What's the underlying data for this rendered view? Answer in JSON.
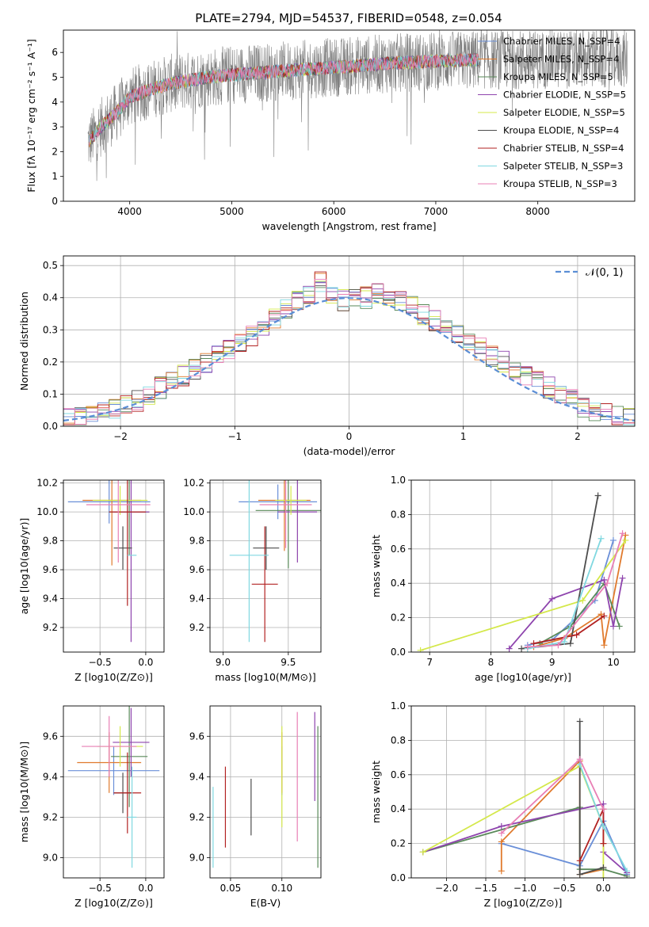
{
  "title": "PLATE=2794, MJD=54537, FIBERID=0548, z=0.054",
  "colors": [
    "#6a8fd8",
    "#e07a2d",
    "#5a8a5a",
    "#8e44ad",
    "#d4e84a",
    "#4d4d4d",
    "#b22222",
    "#80d8e0",
    "#e87fb5",
    "#777777"
  ],
  "chart_data": [
    {
      "id": "spectrum",
      "type": "line",
      "xlabel": "wavelength [Angstrom, rest frame]",
      "ylabel": "Flux [fλ 10⁻¹⁷ erg cm⁻² s⁻¹ A⁻¹]",
      "xlim": [
        3350,
        8950
      ],
      "ylim": [
        0,
        6.9
      ],
      "xticks": [
        4000,
        5000,
        6000,
        7000,
        8000
      ],
      "yticks": [
        0,
        1,
        2,
        3,
        4,
        5,
        6
      ],
      "legend_position": "top-right",
      "legend": [
        "Chabrier MILES, N_SSP=4",
        "Salpeter MILES, N_SSP=4",
        "Kroupa MILES, N_SSP=5",
        "Chabrier ELODIE, N_SSP=5",
        "Salpeter ELODIE, N_SSP=5",
        "Kroupa ELODIE, N_SSP=4",
        "Chabrier STELIB, N_SSP=4",
        "Salpeter STELIB, N_SSP=3",
        "Kroupa STELIB, N_SSP=3"
      ],
      "model_trend": {
        "x": [
          3600,
          3700,
          3800,
          3900,
          4000,
          4200,
          4400,
          4700,
          5000,
          5500,
          6000,
          6500,
          7000,
          7400
        ],
        "y": [
          2.4,
          2.9,
          3.3,
          3.7,
          4.2,
          4.5,
          4.75,
          4.95,
          5.1,
          5.25,
          5.4,
          5.55,
          5.65,
          5.7
        ]
      }
    },
    {
      "id": "residuals",
      "type": "histogram",
      "xlabel": "(data-model)/error",
      "ylabel": "Normed distribution",
      "xlim": [
        -2.5,
        2.5
      ],
      "ylim": [
        0,
        0.53
      ],
      "xticks": [
        -2,
        -1,
        0,
        1,
        2
      ],
      "yticks": [
        0.0,
        0.1,
        0.2,
        0.3,
        0.4,
        0.5
      ],
      "bins": {
        "start": -2.5,
        "width": 0.1,
        "count": 50
      },
      "reference_label": "𝒩(0, 1)",
      "reference_curve": "normal",
      "base_density": [
        0.02,
        0.03,
        0.04,
        0.05,
        0.06,
        0.07,
        0.08,
        0.1,
        0.12,
        0.14,
        0.16,
        0.18,
        0.2,
        0.22,
        0.24,
        0.26,
        0.28,
        0.31,
        0.34,
        0.37,
        0.39,
        0.41,
        0.45,
        0.4,
        0.39,
        0.4,
        0.4,
        0.41,
        0.4,
        0.39,
        0.37,
        0.35,
        0.33,
        0.3,
        0.28,
        0.26,
        0.24,
        0.22,
        0.2,
        0.18,
        0.16,
        0.14,
        0.12,
        0.1,
        0.08,
        0.06,
        0.05,
        0.04,
        0.03,
        0.03
      ]
    },
    {
      "id": "age-vs-z",
      "type": "errorbar",
      "xlabel": "Z [log10(Z/Z⊙)]",
      "ylabel": "age  [log10(age/yr)]",
      "xlim": [
        -0.9,
        0.2
      ],
      "ylim": [
        9.03,
        10.22
      ],
      "xticks": [
        -0.5,
        0.0
      ],
      "yticks": [
        9.2,
        9.4,
        9.6,
        9.8,
        10.0,
        10.2
      ],
      "points": [
        {
          "x": -0.4,
          "xerr": 0.45,
          "y": 10.07,
          "yerr": 0.15,
          "color": 0
        },
        {
          "x": -0.37,
          "xerr": 0.32,
          "y": 10.08,
          "yerr": 0.45,
          "color": 1
        },
        {
          "x": -0.18,
          "xerr": 0.22,
          "y": 10.0,
          "yerr": 0.3,
          "color": 2
        },
        {
          "x": -0.16,
          "xerr": 0.2,
          "y": 10.0,
          "yerr": 0.9,
          "color": 3
        },
        {
          "x": -0.28,
          "xerr": 0.3,
          "y": 10.08,
          "yerr": 0.1,
          "color": 4
        },
        {
          "x": -0.25,
          "xerr": 0.1,
          "y": 9.75,
          "yerr": 0.15,
          "color": 5
        },
        {
          "x": -0.2,
          "xerr": 0.2,
          "y": 10.0,
          "yerr": 0.65,
          "color": 6
        },
        {
          "x": -0.15,
          "xerr": 0.05,
          "y": 9.7,
          "yerr": 0.0,
          "color": 7
        },
        {
          "x": -0.3,
          "xerr": 0.35,
          "y": 10.05,
          "yerr": 0.4,
          "color": 8
        }
      ]
    },
    {
      "id": "age-vs-mass",
      "type": "errorbar",
      "xlabel": "mass [log10(M/M⊙)]",
      "ylabel": "",
      "xlim": [
        8.9,
        9.75
      ],
      "ylim": [
        9.03,
        10.22
      ],
      "xticks": [
        9.0,
        9.5
      ],
      "yticks": [
        9.2,
        9.4,
        9.6,
        9.8,
        10.0,
        10.2
      ],
      "points": [
        {
          "x": 9.42,
          "xerr": 0.3,
          "y": 10.07,
          "yerr": 0.12,
          "color": 0
        },
        {
          "x": 9.47,
          "xerr": 0.2,
          "y": 10.08,
          "yerr": 0.35,
          "color": 1
        },
        {
          "x": 9.5,
          "xerr": 0.25,
          "y": 10.01,
          "yerr": 0.4,
          "color": 2
        },
        {
          "x": 9.57,
          "xerr": 0.15,
          "y": 10.0,
          "yerr": 0.35,
          "color": 3
        },
        {
          "x": 9.52,
          "xerr": 0.12,
          "y": 10.08,
          "yerr": 0.1,
          "color": 4
        },
        {
          "x": 9.33,
          "xerr": 0.1,
          "y": 9.75,
          "yerr": 0.15,
          "color": 5
        },
        {
          "x": 9.32,
          "xerr": 0.1,
          "y": 9.5,
          "yerr": 0.4,
          "color": 6
        },
        {
          "x": 9.2,
          "xerr": 0.15,
          "y": 9.7,
          "yerr": 0.6,
          "color": 7
        },
        {
          "x": 9.48,
          "xerr": 0.2,
          "y": 10.05,
          "yerr": 0.3,
          "color": 8
        }
      ]
    },
    {
      "id": "massweight-vs-age",
      "type": "line",
      "xlabel": "age  [log10(age/yr)]",
      "ylabel": "mass weight",
      "xlim": [
        6.7,
        10.35
      ],
      "ylim": [
        0,
        1.0
      ],
      "xticks": [
        7,
        8,
        9,
        10
      ],
      "yticks": [
        0.0,
        0.2,
        0.4,
        0.6,
        0.8,
        1.0
      ],
      "series": [
        {
          "color": 0,
          "x": [
            8.6,
            9.0,
            9.7,
            10.0
          ],
          "y": [
            0.04,
            0.07,
            0.3,
            0.65
          ]
        },
        {
          "color": 1,
          "x": [
            8.7,
            9.2,
            9.8,
            9.85,
            10.2
          ],
          "y": [
            0.03,
            0.08,
            0.22,
            0.04,
            0.68
          ]
        },
        {
          "color": 2,
          "x": [
            8.8,
            9.3,
            9.85,
            10.1
          ],
          "y": [
            0.05,
            0.15,
            0.4,
            0.15
          ]
        },
        {
          "color": 3,
          "x": [
            8.3,
            9.0,
            9.85,
            10.0,
            10.15
          ],
          "y": [
            0.02,
            0.31,
            0.42,
            0.15,
            0.43
          ]
        },
        {
          "color": 4,
          "x": [
            6.85,
            9.5,
            10.2
          ],
          "y": [
            0.01,
            0.3,
            0.65
          ]
        },
        {
          "color": 5,
          "x": [
            8.5,
            9.3,
            9.75
          ],
          "y": [
            0.02,
            0.05,
            0.91
          ]
        },
        {
          "color": 6,
          "x": [
            8.7,
            9.4,
            9.85
          ],
          "y": [
            0.05,
            0.1,
            0.21
          ]
        },
        {
          "color": 7,
          "x": [
            8.6,
            9.2,
            9.8
          ],
          "y": [
            0.02,
            0.06,
            0.66
          ]
        },
        {
          "color": 8,
          "x": [
            8.6,
            9.1,
            9.9,
            10.15
          ],
          "y": [
            0.03,
            0.04,
            0.4,
            0.69
          ]
        }
      ]
    },
    {
      "id": "mass-vs-z",
      "type": "errorbar",
      "xlabel": "Z [log10(Z/Z⊙)]",
      "ylabel": "mass [log10(M/M⊙)]",
      "xlim": [
        -0.9,
        0.2
      ],
      "ylim": [
        8.9,
        9.75
      ],
      "xticks": [
        -0.5,
        0.0
      ],
      "yticks": [
        9.0,
        9.2,
        9.4,
        9.6
      ],
      "points": [
        {
          "x": -0.35,
          "xerr": 0.5,
          "y": 9.43,
          "yerr": 0.12,
          "color": 0
        },
        {
          "x": -0.4,
          "xerr": 0.35,
          "y": 9.47,
          "yerr": 0.15,
          "color": 1
        },
        {
          "x": -0.18,
          "xerr": 0.2,
          "y": 9.5,
          "yerr": 0.25,
          "color": 2
        },
        {
          "x": -0.16,
          "xerr": 0.2,
          "y": 9.57,
          "yerr": 0.17,
          "color": 3
        },
        {
          "x": -0.28,
          "xerr": 0.25,
          "y": 9.55,
          "yerr": 0.1,
          "color": 4
        },
        {
          "x": -0.25,
          "xerr": 0.1,
          "y": 9.32,
          "yerr": 0.1,
          "color": 5
        },
        {
          "x": -0.2,
          "xerr": 0.15,
          "y": 9.32,
          "yerr": 0.2,
          "color": 6
        },
        {
          "x": -0.15,
          "xerr": 0.05,
          "y": 9.2,
          "yerr": 0.25,
          "color": 7
        },
        {
          "x": -0.4,
          "xerr": 0.3,
          "y": 9.55,
          "yerr": 0.15,
          "color": 8
        }
      ]
    },
    {
      "id": "mass-vs-ebv",
      "type": "errorbar",
      "xlabel": "E(B-V)",
      "ylabel": "",
      "xlim": [
        0.03,
        0.138
      ],
      "ylim": [
        8.9,
        9.75
      ],
      "xticks": [
        0.05,
        0.1
      ],
      "yticks": [
        9.0,
        9.2,
        9.4,
        9.6
      ],
      "points": [
        {
          "x": 0.1,
          "xerr": 0,
          "y": 9.43,
          "yerr": 0.12,
          "color": 0
        },
        {
          "x": 0.1,
          "xerr": 0,
          "y": 9.47,
          "yerr": 0.15,
          "color": 1
        },
        {
          "x": 0.135,
          "xerr": 0,
          "y": 9.3,
          "yerr": 0.35,
          "color": 2
        },
        {
          "x": 0.132,
          "xerr": 0,
          "y": 9.5,
          "yerr": 0.22,
          "color": 3
        },
        {
          "x": 0.1,
          "xerr": 0,
          "y": 9.4,
          "yerr": 0.25,
          "color": 4
        },
        {
          "x": 0.07,
          "xerr": 0,
          "y": 9.25,
          "yerr": 0.14,
          "color": 5
        },
        {
          "x": 0.045,
          "xerr": 0,
          "y": 9.25,
          "yerr": 0.2,
          "color": 6
        },
        {
          "x": 0.033,
          "xerr": 0,
          "y": 9.15,
          "yerr": 0.2,
          "color": 7
        },
        {
          "x": 0.115,
          "xerr": 0,
          "y": 9.4,
          "yerr": 0.32,
          "color": 8
        }
      ]
    },
    {
      "id": "massweight-vs-z",
      "type": "line",
      "xlabel": "Z [log10(Z/Z⊙)]",
      "ylabel": "mass weight",
      "xlim": [
        -2.45,
        0.4
      ],
      "ylim": [
        0,
        1.0
      ],
      "xticks": [
        -2.0,
        -1.5,
        -1.0,
        -0.5,
        0.0
      ],
      "yticks": [
        0.0,
        0.2,
        0.4,
        0.6,
        0.8,
        1.0
      ],
      "series": [
        {
          "color": 0,
          "x": [
            -1.3,
            -0.3,
            0.0,
            0.3
          ],
          "y": [
            0.2,
            0.07,
            0.33,
            0.02
          ]
        },
        {
          "color": 1,
          "x": [
            -1.3,
            -1.3,
            -0.3,
            -0.3,
            0.0
          ],
          "y": [
            0.04,
            0.21,
            0.68,
            0.02,
            0.05
          ]
        },
        {
          "color": 2,
          "x": [
            -2.3,
            -0.3,
            -0.3,
            0.0,
            0.3
          ],
          "y": [
            0.15,
            0.41,
            0.05,
            0.05,
            0.01
          ]
        },
        {
          "color": 3,
          "x": [
            -2.3,
            -1.3,
            0.0,
            0.0,
            0.3
          ],
          "y": [
            0.15,
            0.3,
            0.43,
            0.15,
            0.03
          ]
        },
        {
          "color": 4,
          "x": [
            -2.3,
            -0.3,
            0.0,
            0.0
          ],
          "y": [
            0.15,
            0.65,
            0.3,
            0.0
          ]
        },
        {
          "color": 5,
          "x": [
            -0.3,
            -0.3,
            0.0
          ],
          "y": [
            0.91,
            0.02,
            0.06
          ]
        },
        {
          "color": 6,
          "x": [
            -0.3,
            0.0,
            0.0
          ],
          "y": [
            0.1,
            0.4,
            0.2
          ]
        },
        {
          "color": 7,
          "x": [
            -0.3,
            0.0,
            0.3
          ],
          "y": [
            0.66,
            0.3,
            0.04
          ]
        },
        {
          "color": 8,
          "x": [
            -1.3,
            -0.3,
            0.0
          ],
          "y": [
            0.26,
            0.69,
            0.4
          ]
        }
      ]
    }
  ]
}
